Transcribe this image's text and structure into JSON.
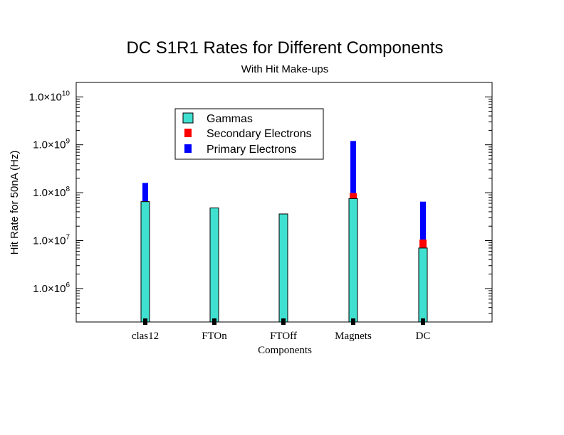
{
  "chart_data": {
    "type": "bar",
    "stacked": true,
    "log_scale_y": true,
    "title": "DC S1R1 Rates for Different Components",
    "subtitle": "With Hit Make-ups",
    "xlabel": "Components",
    "ylabel": "Hit Rate for 50nA (Hz)",
    "ylim": [
      200000,
      20000000000
    ],
    "y_ticks": [
      {
        "value": 1000000,
        "mantissa": "1.0",
        "exponent": "6"
      },
      {
        "value": 10000000,
        "mantissa": "1.0",
        "exponent": "7"
      },
      {
        "value": 100000000,
        "mantissa": "1.0",
        "exponent": "8"
      },
      {
        "value": 1000000000,
        "mantissa": "1.0",
        "exponent": "9"
      },
      {
        "value": 10000000000,
        "mantissa": "1.0",
        "exponent": "10"
      }
    ],
    "times_symbol": "×",
    "categories": [
      "clas12",
      "FTOn",
      "FTOff",
      "Magnets",
      "DC"
    ],
    "series": [
      {
        "name": "Gammas",
        "color": "#40e0d0",
        "cumulative_top": [
          65000000,
          48000000,
          36000000,
          75000000,
          7000000
        ]
      },
      {
        "name": "Secondary Electrons",
        "color": "#ff0000",
        "cumulative_top": [
          66000000,
          48500000,
          36500000,
          98000000,
          10500000
        ]
      },
      {
        "name": "Primary Electrons",
        "color": "#0000ff",
        "cumulative_top": [
          160000000,
          48500000,
          36500000,
          1200000000,
          65000000
        ]
      }
    ],
    "grid": false,
    "legend_position": "top-left"
  }
}
